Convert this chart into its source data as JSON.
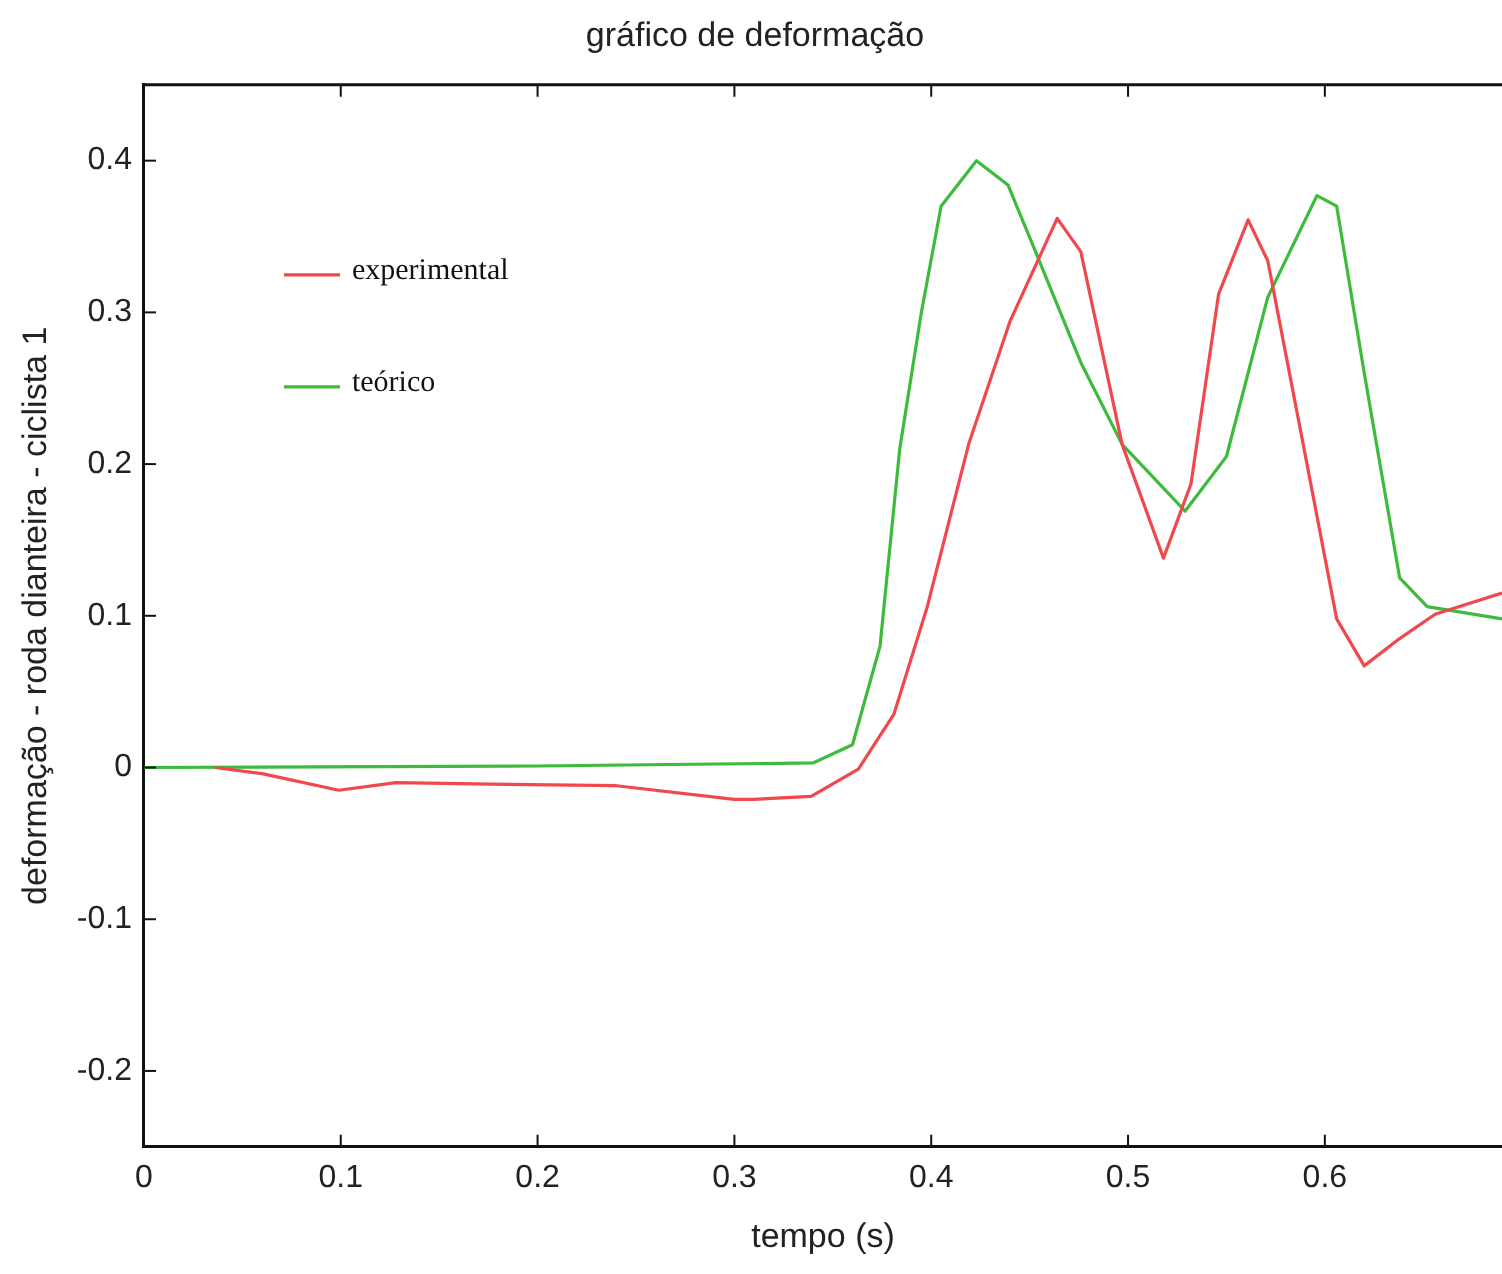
{
  "chart_data": {
    "type": "line",
    "title": "gráfico de deformação",
    "xlabel": "tempo (s)",
    "ylabel": "deformação - roda dianteira - ciclista 1",
    "xlim": [
      0,
      0.69
    ],
    "xticks": [
      0,
      0.1,
      0.2,
      0.3,
      0.4,
      0.5,
      0.6
    ],
    "ylim": [
      -0.25,
      0.45
    ],
    "yticks": [
      -0.2,
      -0.1,
      0,
      0.1,
      0.2,
      0.3,
      0.4
    ],
    "grid": false,
    "legend": "top left",
    "marker": "none",
    "line_style": "solid",
    "series": [
      {
        "name": "experimental",
        "color": "#f0484c",
        "x": [
          0.036,
          0.06,
          0.099,
          0.128,
          0.176,
          0.24,
          0.3,
          0.31,
          0.339,
          0.363,
          0.381,
          0.398,
          0.419,
          0.44,
          0.464,
          0.476,
          0.497,
          0.518,
          0.532,
          0.546,
          0.561,
          0.571,
          0.589,
          0.606,
          0.62,
          0.638,
          0.656,
          0.69
        ],
        "values": [
          0,
          -0.004,
          -0.015,
          -0.01,
          -0.011,
          -0.012,
          -0.021,
          -0.021,
          -0.019,
          -0.001,
          0.035,
          0.106,
          0.213,
          0.294,
          0.362,
          0.34,
          0.213,
          0.138,
          0.187,
          0.312,
          0.361,
          0.334,
          0.213,
          0.098,
          0.067,
          0.085,
          0.101,
          0.115
        ]
      },
      {
        "name": "teórico",
        "color": "#3cbb3c",
        "x": [
          0,
          0.2,
          0.34,
          0.36,
          0.374,
          0.384,
          0.395,
          0.405,
          0.423,
          0.439,
          0.453,
          0.476,
          0.497,
          0.529,
          0.55,
          0.571,
          0.596,
          0.606,
          0.62,
          0.638,
          0.652,
          0.69
        ],
        "values": [
          0,
          0.001,
          0.003,
          0.015,
          0.08,
          0.21,
          0.3,
          0.37,
          0.4,
          0.384,
          0.34,
          0.267,
          0.213,
          0.169,
          0.205,
          0.31,
          0.377,
          0.37,
          0.26,
          0.125,
          0.106,
          0.098
        ]
      }
    ]
  }
}
